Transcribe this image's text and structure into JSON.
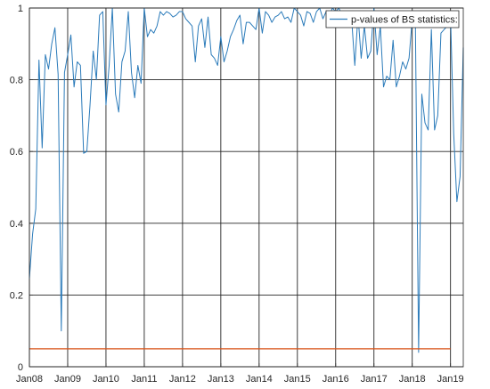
{
  "chart_data": {
    "type": "line",
    "title": "",
    "xlabel": "",
    "ylabel": "",
    "x_tick_labels": [
      "Jan08",
      "Jan09",
      "Jan10",
      "Jan11",
      "Jan12",
      "Jan13",
      "Jan14",
      "Jan15",
      "Jan16",
      "Jan17",
      "Jan18",
      "Jan19"
    ],
    "x_tick_dates": [
      "2008-01",
      "2009-01",
      "2010-01",
      "2011-01",
      "2012-01",
      "2013-01",
      "2014-01",
      "2015-01",
      "2016-01",
      "2017-01",
      "2018-01",
      "2019-01"
    ],
    "xlim": [
      "2008-01",
      "2019-05"
    ],
    "ylim": [
      0,
      1
    ],
    "y_ticks": [
      "0",
      "0.2",
      "0.4",
      "0.6",
      "0.8",
      "1"
    ],
    "grid": true,
    "legend_position": "top-right",
    "series": [
      {
        "name": "p-values of BS statistics:",
        "color": "#2b7bba",
        "x_start": "2008-01",
        "x_step": "1 month",
        "values": [
          0.245,
          0.37,
          0.44,
          0.855,
          0.61,
          0.87,
          0.83,
          0.9,
          0.945,
          0.815,
          0.1,
          0.82,
          0.87,
          0.925,
          0.78,
          0.85,
          0.84,
          0.595,
          0.6,
          0.73,
          0.88,
          0.8,
          0.98,
          0.99,
          0.73,
          0.84,
          1.0,
          0.76,
          0.71,
          0.85,
          0.88,
          0.99,
          0.82,
          0.75,
          0.84,
          0.79,
          1.0,
          0.92,
          0.94,
          0.93,
          0.95,
          0.99,
          0.98,
          0.99,
          0.985,
          0.975,
          0.98,
          0.99,
          0.99,
          0.97,
          0.96,
          0.95,
          0.85,
          0.95,
          0.97,
          0.89,
          0.975,
          0.87,
          0.86,
          0.84,
          0.92,
          0.85,
          0.88,
          0.92,
          0.94,
          0.965,
          0.98,
          0.9,
          0.96,
          0.96,
          0.95,
          0.94,
          1.0,
          0.93,
          0.99,
          0.98,
          0.96,
          0.975,
          0.98,
          0.99,
          0.97,
          0.975,
          0.96,
          1.0,
          0.99,
          0.98,
          0.95,
          0.99,
          0.985,
          0.96,
          0.99,
          1.0,
          0.97,
          0.99,
          0.98,
          1.0,
          0.99,
          1.0,
          0.98,
          0.97,
          0.99,
          0.97,
          0.84,
          0.98,
          0.86,
          0.95,
          0.86,
          0.88,
          1.0,
          0.87,
          0.95,
          0.78,
          0.81,
          0.8,
          0.91,
          0.78,
          0.81,
          0.85,
          0.83,
          0.86,
          0.97,
          0.95,
          0.04,
          0.76,
          0.68,
          0.66,
          0.94,
          0.66,
          0.7,
          0.93,
          0.94,
          0.95,
          0.98,
          0.65,
          0.46,
          0.53,
          0.89
        ]
      },
      {
        "name": "",
        "color": "#d95319",
        "x": [
          "2008-01",
          "2019-01"
        ],
        "values": [
          0.05,
          0.05
        ]
      }
    ]
  }
}
